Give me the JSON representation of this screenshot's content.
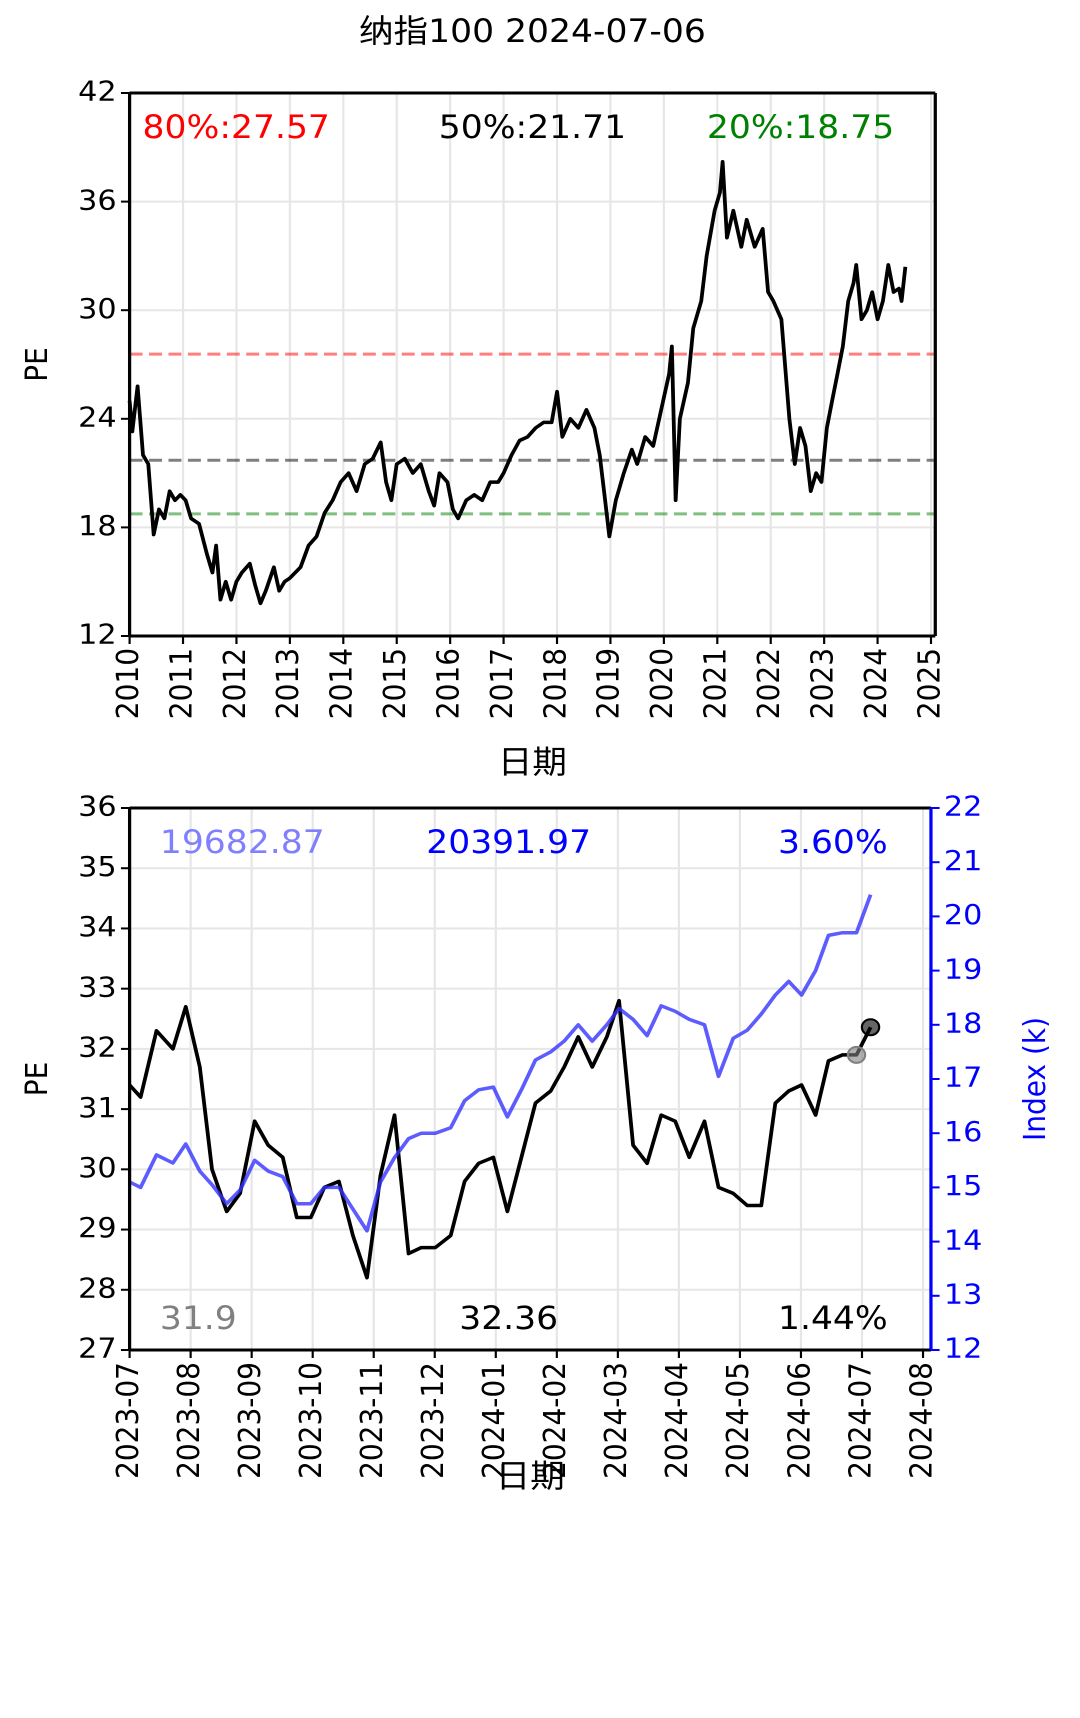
{
  "chart_data": [
    {
      "type": "line",
      "title": "纳指100 2024-07-06",
      "xlabel": "日期",
      "ylabel": "PE",
      "x": [
        2010.0,
        2010.05,
        2010.15,
        2010.25,
        2010.35,
        2010.45,
        2010.55,
        2010.65,
        2010.75,
        2010.85,
        2010.95,
        2011.05,
        2011.15,
        2011.3,
        2011.45,
        2011.55,
        2011.62,
        2011.7,
        2011.8,
        2011.9,
        2012.0,
        2012.1,
        2012.25,
        2012.35,
        2012.45,
        2012.55,
        2012.7,
        2012.8,
        2012.9,
        2013.0,
        2013.2,
        2013.35,
        2013.5,
        2013.65,
        2013.8,
        2013.95,
        2014.1,
        2014.25,
        2014.4,
        2014.55,
        2014.7,
        2014.8,
        2014.9,
        2015.0,
        2015.15,
        2015.3,
        2015.45,
        2015.6,
        2015.7,
        2015.8,
        2015.95,
        2016.05,
        2016.15,
        2016.3,
        2016.45,
        2016.6,
        2016.75,
        2016.9,
        2017.0,
        2017.15,
        2017.3,
        2017.45,
        2017.6,
        2017.75,
        2017.9,
        2018.0,
        2018.1,
        2018.25,
        2018.4,
        2018.55,
        2018.7,
        2018.8,
        2018.9,
        2018.98,
        2019.1,
        2019.25,
        2019.4,
        2019.5,
        2019.65,
        2019.8,
        2019.95,
        2020.1,
        2020.15,
        2020.22,
        2020.3,
        2020.45,
        2020.55,
        2020.7,
        2020.8,
        2020.95,
        2021.05,
        2021.1,
        2021.18,
        2021.3,
        2021.45,
        2021.55,
        2021.7,
        2021.85,
        2021.95,
        2022.05,
        2022.2,
        2022.35,
        2022.45,
        2022.55,
        2022.65,
        2022.75,
        2022.85,
        2022.95,
        2023.05,
        2023.15,
        2023.25,
        2023.35,
        2023.45,
        2023.55,
        2023.6,
        2023.7,
        2023.8,
        2023.9,
        2024.0,
        2024.1,
        2024.2,
        2024.3,
        2024.4,
        2024.45,
        2024.52
      ],
      "series": [
        {
          "color": "#000000",
          "values": [
            25,
            23.3,
            25.8,
            22,
            21.5,
            17.6,
            19,
            18.5,
            20,
            19.5,
            19.8,
            19.5,
            18.5,
            18.2,
            16.5,
            15.5,
            17,
            14,
            15,
            14,
            15,
            15.5,
            16,
            14.8,
            13.8,
            14.5,
            15.8,
            14.5,
            15,
            15.2,
            15.8,
            17,
            17.5,
            18.8,
            19.5,
            20.5,
            21,
            20,
            21.5,
            21.8,
            22.7,
            20.5,
            19.5,
            21.5,
            21.8,
            21,
            21.5,
            20,
            19.2,
            21,
            20.5,
            19,
            18.5,
            19.5,
            19.8,
            19.5,
            20.5,
            20.5,
            21,
            22,
            22.8,
            23,
            23.5,
            23.8,
            23.8,
            25.5,
            23,
            24,
            23.5,
            24.5,
            23.5,
            22,
            19.5,
            17.5,
            19.5,
            21,
            22.3,
            21.5,
            23,
            22.5,
            24.5,
            26.5,
            28,
            19.5,
            24,
            26,
            29,
            30.5,
            33,
            35.5,
            36.5,
            38.2,
            34,
            35.5,
            33.5,
            35,
            33.5,
            34.5,
            31,
            30.5,
            29.5,
            24,
            21.5,
            23.5,
            22.5,
            20,
            21,
            20.5,
            23.5,
            25,
            26.5,
            28,
            30.5,
            31.5,
            32.5,
            29.5,
            30,
            31,
            29.5,
            30.5,
            32.5,
            31,
            31.2,
            30.5,
            32.4
          ]
        }
      ],
      "reference_lines": [
        {
          "label": "80%:27.57",
          "value": 27.57,
          "color": "#ff0000"
        },
        {
          "label": "50%:21.71",
          "value": 21.71,
          "color": "#000000"
        },
        {
          "label": "20%:18.75",
          "value": 18.75,
          "color": "#008000"
        }
      ],
      "xlim": [
        2010,
        2025.08
      ],
      "xticks": [
        2010,
        2011,
        2012,
        2013,
        2014,
        2015,
        2016,
        2017,
        2018,
        2019,
        2020,
        2021,
        2022,
        2023,
        2024,
        2025
      ],
      "ylim": [
        12,
        42
      ],
      "yticks": [
        12,
        18,
        24,
        30,
        36,
        42
      ],
      "grid": true
    },
    {
      "type": "line",
      "xlabel": "日期",
      "ylabel": "PE",
      "y2label": "Index (k)",
      "x": [
        0,
        0.18,
        0.44,
        0.71,
        0.92,
        1.15,
        1.35,
        1.59,
        1.81,
        2.05,
        2.27,
        2.51,
        2.74,
        2.97,
        3.19,
        3.43,
        3.66,
        3.89,
        4.11,
        4.34,
        4.57,
        4.78,
        5.01,
        5.26,
        5.49,
        5.72,
        5.96,
        6.19,
        6.42,
        6.65,
        6.9,
        7.12,
        7.35,
        7.58,
        7.82,
        8.02,
        8.25,
        8.48,
        8.71,
        8.94,
        9.17,
        9.42,
        9.65,
        9.89,
        10.12,
        10.35,
        10.58,
        10.8,
        11.01,
        11.24,
        11.45,
        11.68,
        11.91,
        12.14
      ],
      "series": [
        {
          "color": "#000000",
          "values": [
            31.4,
            31.2,
            32.3,
            32.0,
            32.7,
            31.7,
            30.0,
            29.3,
            29.6,
            30.8,
            30.4,
            30.2,
            29.2,
            29.2,
            29.7,
            29.8,
            28.9,
            28.2,
            29.9,
            30.9,
            28.6,
            28.7,
            28.7,
            28.9,
            29.8,
            30.1,
            30.2,
            29.3,
            30.2,
            31.1,
            31.3,
            31.7,
            32.2,
            31.7,
            32.2,
            32.8,
            30.4,
            30.1,
            30.9,
            30.8,
            30.2,
            30.8,
            29.7,
            29.6,
            29.4,
            29.4,
            31.1,
            31.3,
            31.4,
            30.9,
            31.8,
            31.9,
            31.9,
            32.36
          ]
        },
        {
          "color": "#3333ff",
          "axis": "y2",
          "values": [
            15.1,
            15.0,
            15.6,
            15.45,
            15.8,
            15.3,
            15.05,
            14.7,
            14.95,
            15.5,
            15.3,
            15.2,
            14.7,
            14.7,
            15.0,
            15.0,
            14.6,
            14.2,
            15.1,
            15.55,
            15.9,
            16.0,
            16.0,
            16.1,
            16.6,
            16.8,
            16.85,
            16.3,
            16.8,
            17.35,
            17.5,
            17.7,
            18.0,
            17.7,
            18.0,
            18.3,
            18.1,
            17.8,
            18.35,
            18.25,
            18.1,
            18.0,
            17.05,
            17.75,
            17.9,
            18.2,
            18.55,
            18.8,
            18.55,
            19.0,
            19.65,
            19.7,
            19.7,
            20.4
          ]
        }
      ],
      "markers": [
        {
          "x": 11.91,
          "value": 31.9,
          "color": "#808080"
        },
        {
          "x": 12.14,
          "value": 32.36,
          "color": "#000000"
        }
      ],
      "top_annotations": [
        {
          "text": "19682.87",
          "color": "#8080ff"
        },
        {
          "text": "20391.97",
          "color": "#0000ff"
        },
        {
          "text": "3.60%",
          "color": "#0000ff"
        }
      ],
      "bottom_annotations": [
        {
          "text": "1.44%",
          "color": "#000000"
        }
      ],
      "xlim": [
        0,
        13.13
      ],
      "xticks": [
        {
          "value": 0,
          "label": "2023-07"
        },
        {
          "value": 1,
          "label": "2023-08"
        },
        {
          "value": 2,
          "label": "2023-09"
        },
        {
          "value": 3,
          "label": "2023-10"
        },
        {
          "value": 4,
          "label": "2023-11"
        },
        {
          "value": 5,
          "label": "2023-12"
        },
        {
          "value": 6,
          "label": "2024-01"
        },
        {
          "value": 7,
          "label": "2024-02"
        },
        {
          "value": 8,
          "label": "2024-03"
        },
        {
          "value": 9,
          "label": "2024-04"
        },
        {
          "value": 10,
          "label": "2024-05"
        },
        {
          "value": 11,
          "label": "2024-06"
        },
        {
          "value": 12,
          "label": "2024-07"
        },
        {
          "value": 13,
          "label": "2024-08"
        }
      ],
      "ylim": [
        27,
        36
      ],
      "yticks": [
        27,
        28,
        29,
        30,
        31,
        32,
        33,
        34,
        35,
        36
      ],
      "y2lim": [
        12,
        22
      ],
      "y2ticks": [
        12,
        13,
        14,
        15,
        16,
        17,
        18,
        19,
        20,
        21,
        22
      ],
      "y2color": "#0000ff",
      "grid": true
    }
  ]
}
